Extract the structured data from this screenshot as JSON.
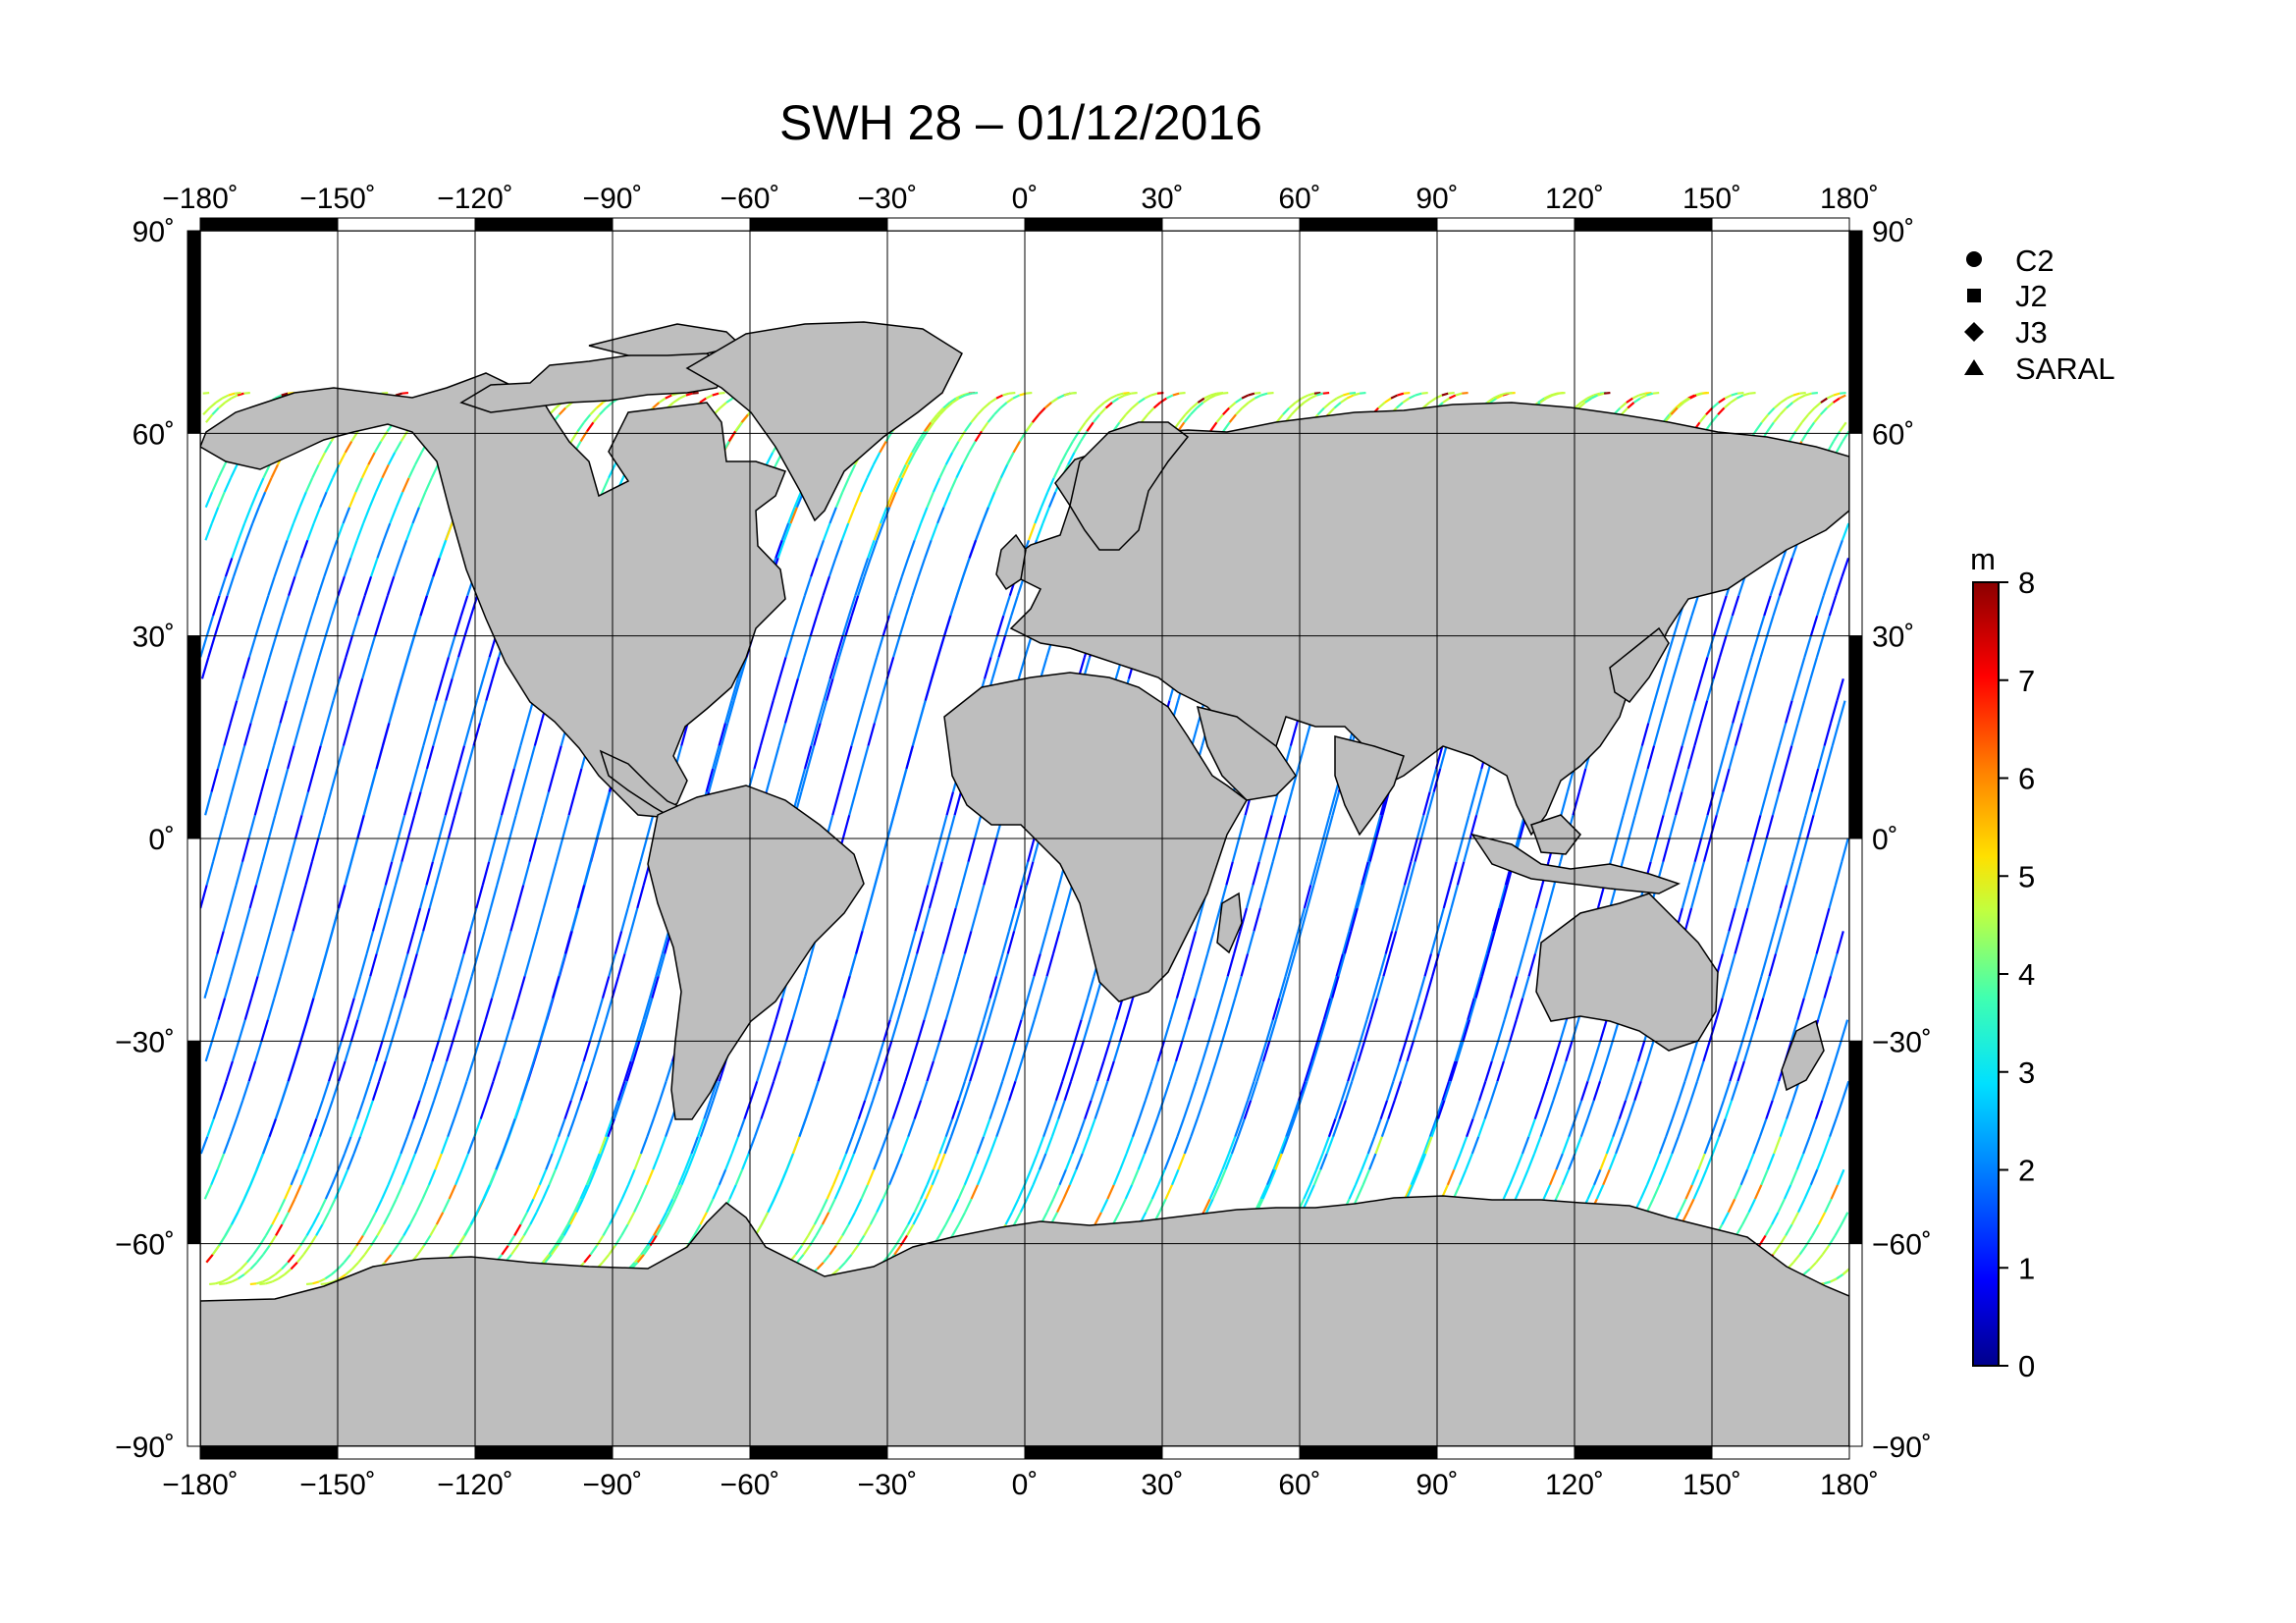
{
  "title": "SWH 28 – 01/12/2016",
  "top_lon_labels": [
    "−180˚",
    "−150˚",
    "−120˚",
    "−90˚",
    "−60˚",
    "−30˚",
    "0˚",
    "30˚",
    "60˚",
    "90˚",
    "120˚",
    "150˚",
    "180˚"
  ],
  "bottom_lon_labels": [
    "−180˚",
    "−150˚",
    "−120˚",
    "−90˚",
    "−60˚",
    "−30˚",
    "0˚",
    "30˚",
    "60˚",
    "90˚",
    "120˚",
    "150˚",
    "180˚"
  ],
  "left_lat_labels": [
    "90˚",
    "60˚",
    "30˚",
    "0˚",
    "−30˚",
    "−60˚",
    "−90˚"
  ],
  "right_lat_labels": [
    "90˚",
    "60˚",
    "30˚",
    "0˚",
    "−30˚",
    "−60˚",
    "−90˚"
  ],
  "legend": {
    "items": [
      {
        "label": "C2",
        "symbol": "circle"
      },
      {
        "label": "J2",
        "symbol": "square"
      },
      {
        "label": "J3",
        "symbol": "diamond"
      },
      {
        "label": "SARAL",
        "symbol": "triangle"
      }
    ]
  },
  "colorbar": {
    "unit": "m",
    "ticks": [
      "8",
      "7",
      "6",
      "5",
      "4",
      "3",
      "2",
      "1",
      "0"
    ],
    "min": 0,
    "max": 8,
    "colors": [
      "#00008b",
      "#0000ff",
      "#0080ff",
      "#00e0ff",
      "#40ffb0",
      "#c0ff40",
      "#ffe000",
      "#ff8000",
      "#ff0000",
      "#8b0000"
    ]
  },
  "colors": {
    "land": "#bebebe",
    "ocean": "#ffffff",
    "grid": "#000000"
  }
}
